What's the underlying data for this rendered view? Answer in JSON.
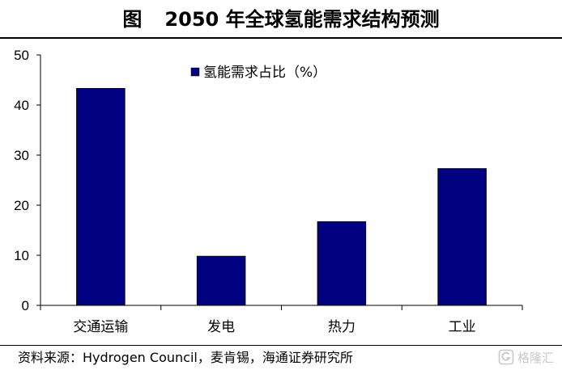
{
  "figure": {
    "label": "图",
    "title": "2050 年全球氢能需求结构预测"
  },
  "chart_data": {
    "type": "bar",
    "categories": [
      "交通运输",
      "发电",
      "热力",
      "工业"
    ],
    "series": [
      {
        "name": "氢能需求占比（%）",
        "values": [
          43.3,
          9.8,
          16.7,
          27.3
        ],
        "color": "#000080"
      }
    ],
    "ylim": [
      0,
      50
    ],
    "yticks": [
      "0",
      "10",
      "20",
      "30",
      "40",
      "50"
    ],
    "legend_position": "top-center",
    "grid": false
  },
  "source": "资料来源：Hydrogen Council，麦肯锡，海通证券研究所",
  "watermark": {
    "icon": "gelonghui-logo-icon",
    "text": "格隆汇"
  }
}
